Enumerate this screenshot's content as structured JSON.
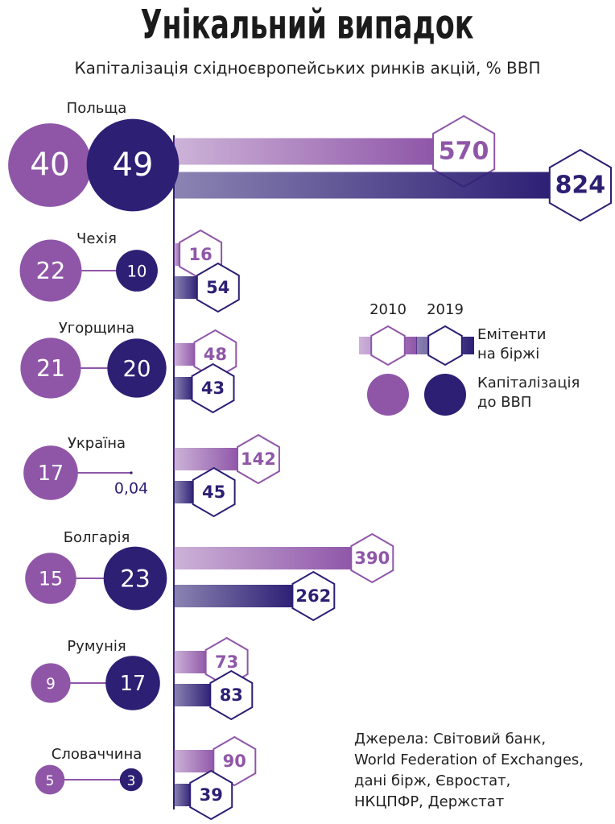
{
  "chart_data": {
    "type": "bubble-bar",
    "title": "Унікальний випадок",
    "subtitle": "Капіталізація східноєвропейських ринків акцій, % ВВП",
    "categories": [
      "Польща",
      "Чехія",
      "Угорщина",
      "Україна",
      "Болгарія",
      "Румунія",
      "Словаччина"
    ],
    "years": [
      "2010",
      "2019"
    ],
    "colors": [
      "#8f56a8",
      "#2d1f74"
    ],
    "issuers": {
      "label": "Емітенти на біржі",
      "series": [
        {
          "values": [
            570,
            16,
            48,
            142,
            390,
            73,
            90
          ]
        },
        {
          "values": [
            824,
            54,
            43,
            45,
            262,
            83,
            39
          ]
        }
      ]
    },
    "capitalization": {
      "label": "Капіталізація до ВВП",
      "series": [
        {
          "values": [
            40,
            22,
            21,
            17,
            15,
            9,
            5
          ]
        },
        {
          "values": [
            49,
            10,
            20,
            0.04,
            23,
            17,
            3
          ],
          "value_labels": [
            "49",
            "10",
            "20",
            "0,04",
            "23",
            "17",
            "3"
          ]
        }
      ]
    },
    "sources": [
      "Джерела: Світовий банк,",
      "World Federation of Exchanges,",
      "дані бірж, Євростат,",
      "НКЦПФР, Держстат"
    ]
  }
}
